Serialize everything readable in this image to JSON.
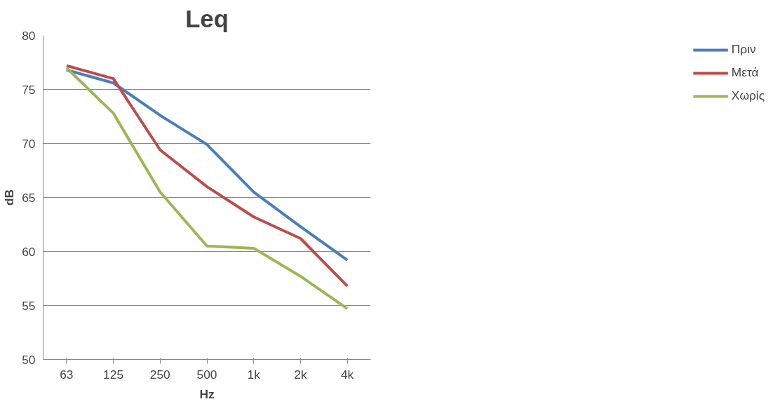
{
  "chart_data": {
    "type": "line",
    "title": "Leq",
    "xlabel": "Hz",
    "ylabel": "dB",
    "categories": [
      "63",
      "125",
      "250",
      "500",
      "1k",
      "2k",
      "4k"
    ],
    "series": [
      {
        "name": "Πριν",
        "color": "#4a7ebb",
        "values": [
          76.8,
          75.6,
          72.6,
          69.9,
          65.5,
          62.3,
          59.2
        ]
      },
      {
        "name": "Μετά",
        "color": "#be4b48",
        "values": [
          77.2,
          76.0,
          69.4,
          66.0,
          63.2,
          61.2,
          56.8
        ]
      },
      {
        "name": "Χωρίς",
        "color": "#98b954",
        "values": [
          77.0,
          72.8,
          65.5,
          60.5,
          60.3,
          57.7,
          54.7
        ]
      }
    ],
    "ylim": [
      50,
      80
    ],
    "yticks": [
      50,
      55,
      60,
      65,
      70,
      75,
      80
    ],
    "grid": "y",
    "legend": "right",
    "marker": "none",
    "line_style": "solid"
  }
}
